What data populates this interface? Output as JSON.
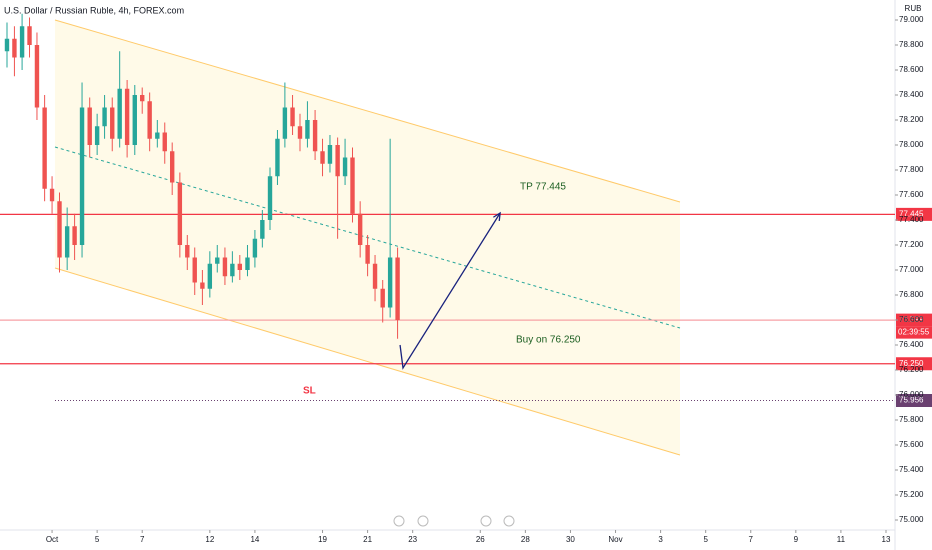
{
  "chart_data": {
    "type": "candlestick",
    "title": "U.S. Dollar / Russian Ruble, 4h, FOREX.com",
    "currency": "RUB",
    "up_color": "#26a69a",
    "down_color": "#ef5350",
    "x": [
      -2,
      -1.67,
      -1.33,
      -1,
      -0.67,
      -0.33,
      0,
      0.33,
      0.67,
      1,
      1.33,
      1.67,
      2,
      2.33,
      2.67,
      3,
      3.33,
      3.67,
      4,
      4.33,
      4.67,
      5,
      5.33,
      5.67,
      6,
      6.33,
      6.67,
      7,
      7.33,
      7.67,
      8,
      8.33,
      8.67,
      9,
      9.33,
      9.67,
      10,
      10.33,
      10.67,
      11,
      11.33,
      11.67,
      12,
      12.33,
      12.67,
      13,
      13.33,
      13.67,
      14,
      14.33,
      14.67,
      15,
      15.33
    ],
    "open": [
      78.75,
      78.85,
      78.7,
      78.95,
      78.8,
      78.3,
      77.65,
      77.55,
      77.1,
      77.35,
      77.2,
      78.3,
      78.0,
      78.15,
      78.3,
      78.05,
      78.45,
      78.0,
      78.4,
      78.35,
      78.05,
      78.1,
      77.95,
      77.7,
      77.2,
      77.1,
      76.9,
      76.85,
      77.05,
      77.1,
      76.95,
      77.05,
      77.0,
      77.1,
      77.25,
      77.4,
      77.75,
      78.05,
      78.3,
      78.15,
      78.05,
      78.2,
      77.95,
      77.85,
      78.0,
      77.75,
      77.9,
      77.45,
      77.2,
      77.05,
      76.85,
      76.7,
      77.1
    ],
    "high": [
      78.98,
      78.95,
      79.05,
      79.02,
      78.9,
      78.4,
      77.75,
      77.62,
      77.5,
      77.45,
      78.5,
      78.38,
      78.25,
      78.4,
      78.38,
      78.75,
      78.52,
      78.48,
      78.46,
      78.42,
      78.2,
      78.18,
      78.02,
      77.78,
      77.28,
      77.18,
      77.0,
      77.15,
      77.2,
      77.18,
      77.15,
      77.12,
      77.2,
      77.32,
      77.48,
      77.82,
      78.12,
      78.5,
      78.4,
      78.25,
      78.35,
      78.28,
      78.05,
      78.08,
      78.06,
      78.05,
      77.98,
      77.55,
      77.28,
      77.12,
      76.92,
      78.05,
      77.18
    ],
    "low": [
      78.62,
      78.55,
      78.6,
      78.7,
      78.2,
      77.55,
      77.45,
      76.98,
      77.0,
      77.08,
      77.1,
      77.9,
      77.92,
      78.05,
      77.95,
      77.98,
      77.9,
      77.92,
      78.25,
      77.95,
      77.98,
      77.85,
      77.6,
      77.1,
      77.0,
      76.8,
      76.72,
      76.78,
      76.98,
      76.88,
      76.9,
      76.92,
      76.95,
      77.02,
      77.18,
      77.32,
      77.68,
      77.98,
      78.08,
      77.95,
      77.98,
      77.88,
      77.75,
      77.78,
      77.25,
      77.68,
      77.38,
      77.1,
      76.95,
      76.75,
      76.58,
      76.62,
      76.45
    ],
    "close": [
      78.85,
      78.7,
      78.95,
      78.8,
      78.3,
      77.65,
      77.55,
      77.1,
      77.35,
      77.2,
      78.3,
      78.0,
      78.15,
      78.3,
      78.05,
      78.45,
      78.0,
      78.4,
      78.35,
      78.05,
      78.1,
      77.95,
      77.7,
      77.2,
      77.1,
      76.9,
      76.85,
      77.05,
      77.1,
      76.95,
      77.05,
      77.0,
      77.1,
      77.25,
      77.4,
      77.75,
      78.05,
      78.3,
      78.15,
      78.05,
      78.2,
      77.95,
      77.85,
      78.0,
      77.75,
      77.9,
      77.45,
      77.2,
      77.05,
      76.85,
      76.7,
      77.1,
      76.6
    ],
    "xlim": [
      -2.31,
      37.4
    ],
    "ylim": [
      75.0,
      79.0
    ],
    "xticks": [
      {
        "value": 0,
        "label": "Oct"
      },
      {
        "value": 2,
        "label": "5"
      },
      {
        "value": 4,
        "label": "7"
      },
      {
        "value": 7,
        "label": "12"
      },
      {
        "value": 9,
        "label": "14"
      },
      {
        "value": 12,
        "label": "19"
      },
      {
        "value": 14,
        "label": "21"
      },
      {
        "value": 16,
        "label": "23"
      },
      {
        "value": 19,
        "label": "26"
      },
      {
        "value": 21,
        "label": "28"
      },
      {
        "value": 23,
        "label": "30"
      },
      {
        "value": 25,
        "label": "Nov"
      },
      {
        "value": 27,
        "label": "3"
      },
      {
        "value": 29,
        "label": "5"
      },
      {
        "value": 31,
        "label": "7"
      },
      {
        "value": 33,
        "label": "9"
      },
      {
        "value": 35,
        "label": "11"
      },
      {
        "value": 37,
        "label": "13"
      }
    ],
    "yticks": [
      {
        "value": 79.0,
        "label": "79.000"
      },
      {
        "value": 78.8,
        "label": "78.800"
      },
      {
        "value": 78.6,
        "label": "78.600"
      },
      {
        "value": 78.4,
        "label": "78.400"
      },
      {
        "value": 78.2,
        "label": "78.200"
      },
      {
        "value": 78.0,
        "label": "78.000"
      },
      {
        "value": 77.8,
        "label": "77.800"
      },
      {
        "value": 77.6,
        "label": "77.600"
      },
      {
        "value": 77.4,
        "label": "77.400"
      },
      {
        "value": 77.2,
        "label": "77.200"
      },
      {
        "value": 77.0,
        "label": "77.000"
      },
      {
        "value": 76.8,
        "label": "76.800"
      },
      {
        "value": 76.6,
        "label": "76.600"
      },
      {
        "value": 76.4,
        "label": "76.400"
      },
      {
        "value": 76.2,
        "label": "76.200"
      },
      {
        "value": 76.0,
        "label": "76.000"
      },
      {
        "value": 75.8,
        "label": "75.800"
      },
      {
        "value": 75.6,
        "label": "75.600"
      },
      {
        "value": 75.4,
        "label": "75.400"
      },
      {
        "value": 75.2,
        "label": "75.200"
      },
      {
        "value": 75.0,
        "label": "75.000"
      }
    ],
    "channel": {
      "upper": [
        [
          0.13,
          79.0
        ],
        [
          27.86,
          77.544
        ]
      ],
      "middle": [
        [
          0.13,
          77.984
        ],
        [
          27.86,
          76.536
        ]
      ],
      "lower": [
        [
          0.13,
          77.016
        ],
        [
          27.86,
          75.52
        ]
      ]
    },
    "levels": [
      {
        "value": 77.445,
        "label": "77.445",
        "color": "#f23645",
        "style": "solid"
      },
      {
        "value": 76.25,
        "label": "76.250",
        "color": "#f23645",
        "style": "solid"
      },
      {
        "value": 75.956,
        "label": "75.956",
        "color": "#6a4070",
        "style": "dotted"
      },
      {
        "value": 76.599,
        "label": "76.599",
        "color": "#f7a1a5",
        "style": "solid",
        "countdown": "02:39:55"
      }
    ],
    "arrow": {
      "x": [
        15.44,
        15.57,
        19.88
      ],
      "y": [
        76.4,
        76.216,
        77.456
      ],
      "color": "#1a237e"
    },
    "annotations": {
      "tp": "TP 77.445",
      "buy": "Buy on 76.250",
      "sl": "SL"
    }
  }
}
